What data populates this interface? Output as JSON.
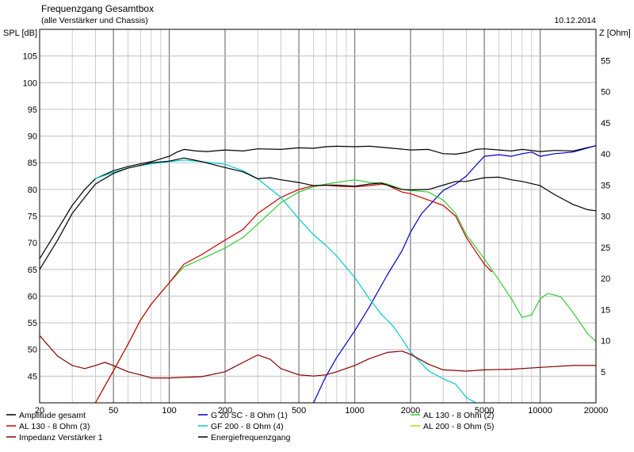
{
  "header": {
    "title": "Frequenzgang Gesamtbox",
    "subtitle": "(alle Verstärker und Chassis)",
    "date": "10.12.2014"
  },
  "chart_data": {
    "type": "line",
    "title": "Frequenzgang Gesamtbox",
    "subtitle": "(alle Verstärker und Chassis)",
    "ylabel": "SPL [dB]",
    "y2label": "Z [Ohm]",
    "x_scale": "log",
    "xlim": [
      20,
      20000
    ],
    "ylim": [
      40,
      110
    ],
    "y2lim": [
      0,
      60
    ],
    "grid": true,
    "legend_position": "bottom",
    "x_tick_labels": [
      "20",
      "50",
      "100",
      "200",
      "500",
      "1000",
      "2000",
      "5000",
      "10000",
      "20000"
    ],
    "x_ticks": [
      20,
      50,
      100,
      200,
      500,
      1000,
      2000,
      5000,
      10000,
      20000
    ],
    "y_ticks": [
      45,
      50,
      55,
      60,
      65,
      70,
      75,
      80,
      85,
      90,
      95,
      100,
      105
    ],
    "y2_ticks": [
      5,
      10,
      15,
      20,
      25,
      30,
      35,
      40,
      45,
      50,
      55
    ],
    "colors": {
      "amplitude": "#000000",
      "g20": "#0000cc",
      "al130_2": "#33cc33",
      "al130_3": "#cc0000",
      "gf200": "#00cccc",
      "al200": "#cccc00",
      "impedanz": "#880000",
      "energie": "#000000"
    },
    "series": [
      {
        "name": "Amplitude gesamt",
        "color_key": "amplitude",
        "axis": "left",
        "points": [
          [
            20,
            67
          ],
          [
            25,
            72.5
          ],
          [
            30,
            77
          ],
          [
            35,
            80
          ],
          [
            40,
            82
          ],
          [
            50,
            83.5
          ],
          [
            60,
            84.3
          ],
          [
            70,
            84.8
          ],
          [
            80,
            85.2
          ],
          [
            100,
            86.2
          ],
          [
            110,
            87
          ],
          [
            120,
            87.5
          ],
          [
            140,
            87.2
          ],
          [
            160,
            87.1
          ],
          [
            200,
            87.4
          ],
          [
            250,
            87.2
          ],
          [
            300,
            87.6
          ],
          [
            400,
            87.5
          ],
          [
            500,
            87.8
          ],
          [
            600,
            87.7
          ],
          [
            700,
            88
          ],
          [
            800,
            88.1
          ],
          [
            1000,
            88
          ],
          [
            1200,
            88.1
          ],
          [
            1500,
            87.8
          ],
          [
            2000,
            87.4
          ],
          [
            2500,
            87.5
          ],
          [
            3000,
            86.7
          ],
          [
            3500,
            86.6
          ],
          [
            4000,
            86.9
          ],
          [
            4500,
            87.5
          ],
          [
            5000,
            87.6
          ],
          [
            6000,
            87.4
          ],
          [
            7000,
            87.2
          ],
          [
            8000,
            87.5
          ],
          [
            10000,
            87.1
          ],
          [
            12000,
            87.3
          ],
          [
            15000,
            87.2
          ],
          [
            20000,
            88.2
          ]
        ]
      },
      {
        "name": "G 20 SC - 8 Ohm (1)",
        "color_key": "g20",
        "axis": "left",
        "points": [
          [
            600,
            40
          ],
          [
            700,
            45
          ],
          [
            800,
            48.5
          ],
          [
            1000,
            53.5
          ],
          [
            1200,
            58
          ],
          [
            1500,
            64
          ],
          [
            1800,
            68.5
          ],
          [
            2000,
            72
          ],
          [
            2300,
            75.5
          ],
          [
            2600,
            77.5
          ],
          [
            3000,
            79.8
          ],
          [
            3500,
            81
          ],
          [
            4000,
            82.5
          ],
          [
            4500,
            84.5
          ],
          [
            5000,
            86.2
          ],
          [
            6000,
            86.5
          ],
          [
            7000,
            86.2
          ],
          [
            8000,
            86.7
          ],
          [
            9000,
            87
          ],
          [
            10000,
            86.2
          ],
          [
            12000,
            86.7
          ],
          [
            15000,
            87
          ],
          [
            20000,
            88.2
          ]
        ]
      },
      {
        "name": "AL 130 - 8 Ohm (2)",
        "color_key": "al130_2",
        "axis": "left",
        "points": [
          [
            40,
            40
          ],
          [
            50,
            46
          ],
          [
            60,
            51
          ],
          [
            70,
            55.5
          ],
          [
            80,
            58.5
          ],
          [
            100,
            62.5
          ],
          [
            120,
            65.5
          ],
          [
            150,
            67
          ],
          [
            200,
            69
          ],
          [
            250,
            71
          ],
          [
            300,
            73.5
          ],
          [
            400,
            77.5
          ],
          [
            500,
            79.5
          ],
          [
            600,
            80.5
          ],
          [
            700,
            81
          ],
          [
            800,
            81.3
          ],
          [
            1000,
            81.8
          ],
          [
            1200,
            81.3
          ],
          [
            1400,
            81.2
          ],
          [
            1500,
            81
          ],
          [
            1800,
            80
          ],
          [
            2000,
            79.8
          ],
          [
            2500,
            79.5
          ],
          [
            3000,
            78
          ],
          [
            3500,
            75.5
          ],
          [
            4000,
            71.5
          ],
          [
            5000,
            67
          ],
          [
            6000,
            63
          ],
          [
            7000,
            59.5
          ],
          [
            8000,
            56
          ],
          [
            9000,
            56.5
          ],
          [
            10000,
            59.5
          ],
          [
            11000,
            60.5
          ],
          [
            12000,
            60.2
          ],
          [
            13000,
            59.8
          ],
          [
            15000,
            57
          ],
          [
            18000,
            53
          ],
          [
            20000,
            51.5
          ]
        ]
      },
      {
        "name": "AL 130 - 8 Ohm (3)",
        "color_key": "al130_3",
        "axis": "left",
        "points": [
          [
            40,
            40
          ],
          [
            50,
            46
          ],
          [
            60,
            51
          ],
          [
            70,
            55.5
          ],
          [
            80,
            58.5
          ],
          [
            100,
            62.5
          ],
          [
            120,
            66
          ],
          [
            150,
            67.8
          ],
          [
            200,
            70.5
          ],
          [
            250,
            72.5
          ],
          [
            300,
            75.5
          ],
          [
            400,
            78.5
          ],
          [
            500,
            80
          ],
          [
            600,
            80.7
          ],
          [
            700,
            80.8
          ],
          [
            800,
            80.6
          ],
          [
            1000,
            80.5
          ],
          [
            1200,
            80.7
          ],
          [
            1400,
            81
          ],
          [
            1500,
            80.8
          ],
          [
            1800,
            79.5
          ],
          [
            2000,
            79.2
          ],
          [
            2500,
            78
          ],
          [
            3000,
            77
          ],
          [
            3500,
            75
          ],
          [
            4000,
            71
          ],
          [
            5000,
            66
          ],
          [
            5500,
            64.5
          ]
        ]
      },
      {
        "name": "GF 200 - 8 Ohm (4)",
        "color_key": "gf200",
        "axis": "left",
        "points": [
          [
            40,
            82
          ],
          [
            50,
            83.2
          ],
          [
            60,
            84
          ],
          [
            70,
            84.5
          ],
          [
            80,
            84.8
          ],
          [
            90,
            85
          ],
          [
            100,
            85.2
          ],
          [
            120,
            85.5
          ],
          [
            150,
            85.2
          ],
          [
            200,
            84.7
          ],
          [
            250,
            83.5
          ],
          [
            300,
            82
          ],
          [
            400,
            78.5
          ],
          [
            500,
            74.5
          ],
          [
            600,
            71.5
          ],
          [
            700,
            69.5
          ],
          [
            800,
            67.5
          ],
          [
            1000,
            63.5
          ],
          [
            1200,
            59.5
          ],
          [
            1400,
            56.5
          ],
          [
            1600,
            54.5
          ],
          [
            1800,
            52
          ],
          [
            2000,
            49.5
          ],
          [
            2500,
            46
          ],
          [
            3000,
            44.5
          ],
          [
            3500,
            43.5
          ],
          [
            4000,
            41
          ],
          [
            4500,
            40
          ]
        ]
      },
      {
        "name": "AL 200 - 8 Ohm (5)",
        "color_key": "al200",
        "axis": "left",
        "points": []
      },
      {
        "name": "Impedanz Verstärker 1",
        "color_key": "impedanz",
        "axis": "right",
        "points": [
          [
            20,
            10.8
          ],
          [
            25,
            7.5
          ],
          [
            30,
            6
          ],
          [
            35,
            5.5
          ],
          [
            40,
            6
          ],
          [
            45,
            6.5
          ],
          [
            50,
            6
          ],
          [
            60,
            5
          ],
          [
            70,
            4.5
          ],
          [
            80,
            4
          ],
          [
            100,
            4
          ],
          [
            150,
            4.2
          ],
          [
            200,
            5
          ],
          [
            250,
            6.5
          ],
          [
            300,
            7.7
          ],
          [
            350,
            7
          ],
          [
            400,
            5.5
          ],
          [
            500,
            4.5
          ],
          [
            600,
            4.3
          ],
          [
            700,
            4.5
          ],
          [
            800,
            5
          ],
          [
            1000,
            6
          ],
          [
            1200,
            7.1
          ],
          [
            1500,
            8.1
          ],
          [
            1800,
            8.3
          ],
          [
            2000,
            7.8
          ],
          [
            2500,
            6.2
          ],
          [
            3000,
            5.3
          ],
          [
            4000,
            5.1
          ],
          [
            5000,
            5.3
          ],
          [
            7000,
            5.4
          ],
          [
            10000,
            5.7
          ],
          [
            15000,
            6
          ],
          [
            20000,
            6
          ]
        ]
      },
      {
        "name": "Energiefrequenzgang",
        "color_key": "energie",
        "axis": "left",
        "points": [
          [
            20,
            65
          ],
          [
            25,
            70.5
          ],
          [
            30,
            75.5
          ],
          [
            35,
            78.5
          ],
          [
            40,
            81
          ],
          [
            50,
            83
          ],
          [
            60,
            84
          ],
          [
            70,
            84.5
          ],
          [
            80,
            85
          ],
          [
            100,
            85.3
          ],
          [
            120,
            85.9
          ],
          [
            150,
            85.2
          ],
          [
            200,
            84.1
          ],
          [
            250,
            83.3
          ],
          [
            300,
            82
          ],
          [
            350,
            82.2
          ],
          [
            400,
            81.8
          ],
          [
            500,
            81.3
          ],
          [
            600,
            80.7
          ],
          [
            700,
            80.8
          ],
          [
            800,
            80.8
          ],
          [
            1000,
            80.6
          ],
          [
            1200,
            81
          ],
          [
            1400,
            81.2
          ],
          [
            1500,
            80.8
          ],
          [
            1800,
            80
          ],
          [
            2000,
            79.9
          ],
          [
            2500,
            80
          ],
          [
            3000,
            80.8
          ],
          [
            3500,
            81.5
          ],
          [
            4000,
            81.5
          ],
          [
            5000,
            82.2
          ],
          [
            6000,
            82.3
          ],
          [
            7000,
            81.8
          ],
          [
            8000,
            81.5
          ],
          [
            10000,
            80.7
          ],
          [
            12000,
            79
          ],
          [
            15000,
            77.2
          ],
          [
            18000,
            76.2
          ],
          [
            20000,
            76
          ]
        ]
      }
    ]
  }
}
